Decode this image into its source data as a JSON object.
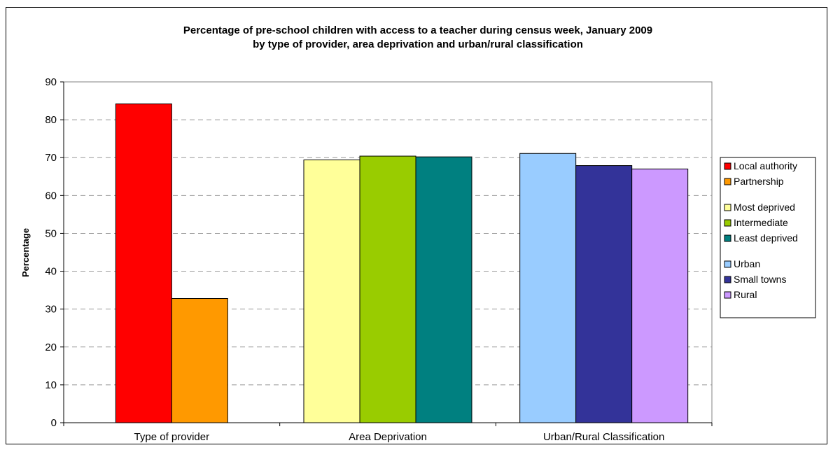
{
  "chart_data": {
    "type": "bar",
    "title": [
      "Percentage of pre-school children with access to a teacher during census week, January 2009",
      "by type of provider, area deprivation and urban/rural classification"
    ],
    "xlabel": "",
    "ylabel": "Percentage",
    "ylim": [
      0,
      90
    ],
    "yticks": [
      "0",
      "10",
      "20",
      "30",
      "40",
      "50",
      "60",
      "70",
      "80",
      "90"
    ],
    "grid": "horizontal dashed",
    "legend_position": "right",
    "groups": [
      {
        "label": "Type of provider",
        "bars": [
          {
            "name": "Local authority",
            "value": 84.2,
            "color": "#ff0000"
          },
          {
            "name": "Partnership",
            "value": 32.8,
            "color": "#ff9900"
          }
        ]
      },
      {
        "label": "Area Deprivation",
        "bars": [
          {
            "name": "Most deprived",
            "value": 69.4,
            "color": "#ffff99"
          },
          {
            "name": "Intermediate",
            "value": 70.4,
            "color": "#99cc00"
          },
          {
            "name": "Least deprived",
            "value": 70.2,
            "color": "#008080"
          }
        ]
      },
      {
        "label": "Urban/Rural Classification",
        "bars": [
          {
            "name": "Urban",
            "value": 71.1,
            "color": "#99ccff"
          },
          {
            "name": "Small towns",
            "value": 67.9,
            "color": "#333399"
          },
          {
            "name": "Rural",
            "value": 67.0,
            "color": "#cc99ff"
          }
        ]
      }
    ]
  }
}
